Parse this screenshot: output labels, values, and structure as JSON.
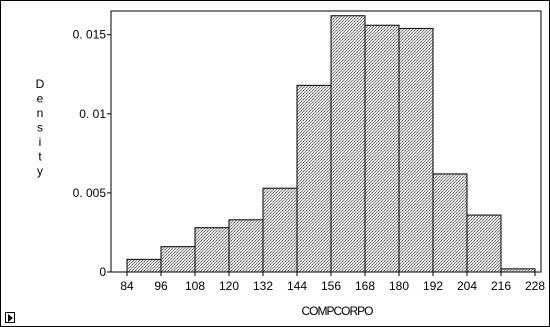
{
  "chart_data": {
    "type": "bar",
    "subtype": "histogram",
    "title": "",
    "xlabel": "COMPCORPO",
    "ylabel": "Density",
    "bin_edges": [
      84,
      96,
      108,
      120,
      132,
      144,
      156,
      168,
      180,
      192,
      204,
      216,
      228
    ],
    "values": [
      0.0008,
      0.0016,
      0.0028,
      0.0033,
      0.0053,
      0.0118,
      0.0162,
      0.0156,
      0.0154,
      0.0062,
      0.0036,
      0.0002
    ],
    "x_ticks": [
      84,
      96,
      108,
      120,
      132,
      144,
      156,
      168,
      180,
      192,
      204,
      216,
      228
    ],
    "y_ticks": [
      {
        "value": 0,
        "label": "0"
      },
      {
        "value": 0.005,
        "label": "0. 005"
      },
      {
        "value": 0.01,
        "label": "0. 01"
      },
      {
        "value": 0.015,
        "label": "0. 015"
      }
    ],
    "ylim": [
      0,
      0.0165
    ],
    "bar_fill": "#bdbdbd",
    "bar_edge": "#000000",
    "grid": false,
    "legend": "none"
  },
  "corner_control_icon": "play-triangle-icon"
}
